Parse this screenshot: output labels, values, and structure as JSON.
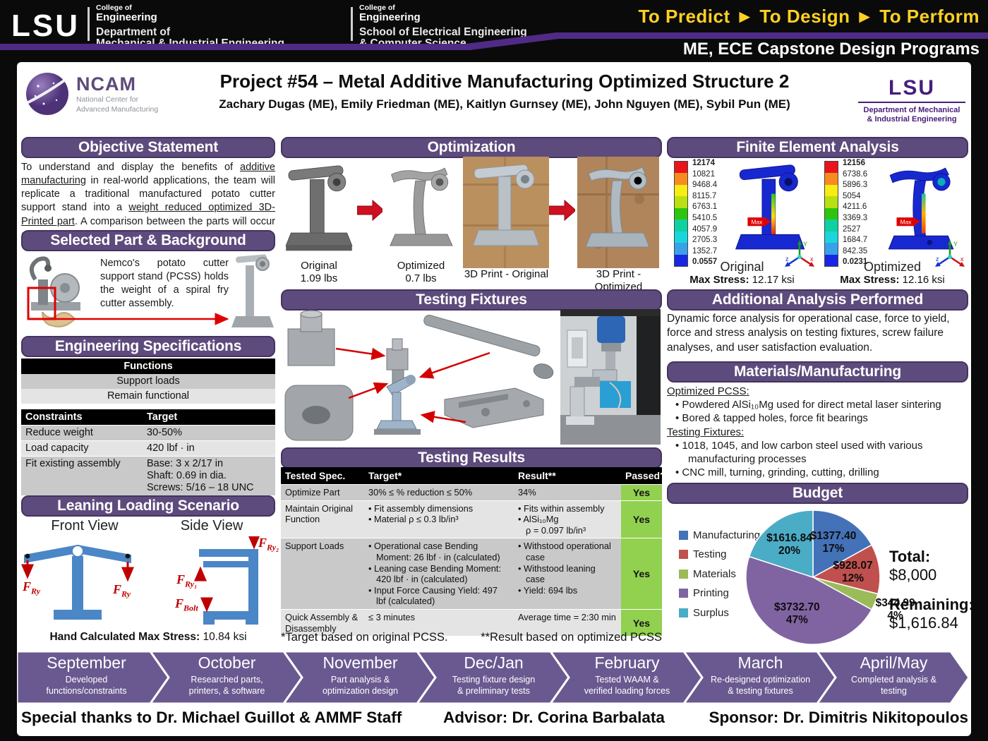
{
  "banner": {
    "lsu_wordmark": "LSU",
    "unit1": {
      "c1": "College of",
      "c2": "Engineering",
      "l1": "Department of",
      "l2": "Mechanical & Industrial Engineering"
    },
    "unit2": {
      "c1": "College of",
      "c2": "Engineering",
      "l1": "School of Electrical Engineering",
      "l2": "& Computer Science"
    },
    "tagline": "To Predict ► To Design ► To Perform",
    "program": "ME, ECE Capstone Design Programs"
  },
  "title_block": {
    "ncam": {
      "name": "NCAM",
      "sub1": "National Center for",
      "sub2": "Advanced Manufacturing"
    },
    "title": "Project #54 – Metal Additive Manufacturing Optimized Structure 2",
    "authors": "Zachary Dugas (ME), Emily Friedman (ME), Kaitlyn Gurnsey (ME), John Nguyen (ME), Sybil Pun (ME)",
    "lsu_dept": {
      "wordmark": "LSU",
      "line1": "Department of Mechanical",
      "line2": "& Industrial Engineering"
    }
  },
  "objective": {
    "header": "Objective Statement",
    "segments": [
      {
        "t": "To understand and display the benefits of ",
        "u": false
      },
      {
        "t": "additive manufacturing",
        "u": true
      },
      {
        "t": " in real-world applications, the team will replicate a traditional manufactured potato cutter support stand into a ",
        "u": false
      },
      {
        "t": "weight reduced optimized 3D-Printed part",
        "u": true
      },
      {
        "t": ". A comparison between the parts will occur after testing.",
        "u": false
      }
    ]
  },
  "selected_part": {
    "header": "Selected Part & Background",
    "text": "Nemco's potato cutter support stand (PCSS) holds the weight of a spiral fry cutter assembly."
  },
  "engineering_specs": {
    "header": "Engineering Specifications",
    "functions_header": "Functions",
    "functions": [
      "Support loads",
      "Remain functional"
    ],
    "constraints_headers": [
      "Constraints",
      "Target"
    ],
    "constraints": [
      {
        "name": "Reduce weight",
        "target": [
          "30-50%"
        ]
      },
      {
        "name": "Load capacity",
        "target": [
          "420 lbf · in"
        ]
      },
      {
        "name": "Fit existing assembly",
        "target": [
          "Base: 3 x 2/17 in",
          "Shaft: 0.69 in dia.",
          "Screws: 5/16 – 18 UNC"
        ]
      }
    ]
  },
  "leaning": {
    "header": "Leaning Loading Scenario",
    "front_label": "Front View",
    "side_label": "Side View",
    "front_forces": [
      {
        "m": "F",
        "s": "Ry"
      },
      {
        "m": "F",
        "s": "Ry"
      }
    ],
    "side_forces": [
      {
        "m": "F",
        "s": "Ry₂"
      },
      {
        "m": "F",
        "s": "Ry₁"
      },
      {
        "m": "F",
        "s": "Bolt"
      }
    ],
    "hand_calc_label": "Hand Calculated Max Stress:",
    "hand_calc_value": "10.84  ksi"
  },
  "optimization": {
    "header": "Optimization",
    "items": [
      {
        "label1": "Original",
        "label2": "1.09 lbs"
      },
      {
        "label1": "Optimized",
        "label2": "0.7 lbs"
      },
      {
        "label1": "3D Print - Original",
        "label2": ""
      },
      {
        "label1": "3D Print - Optimized",
        "label2": ""
      }
    ]
  },
  "testing_fixtures": {
    "header": "Testing Fixtures"
  },
  "testing_results": {
    "header": "Testing Results",
    "columns": [
      "Tested Spec.",
      "Target*",
      "Result**",
      "Passed?"
    ],
    "rows": [
      {
        "spec": "Optimize Part",
        "target": [
          "30% ≤ % reduction ≤ 50%"
        ],
        "target_bullets": false,
        "result": [
          "34%"
        ],
        "result_bullets": false,
        "passed": "Yes"
      },
      {
        "spec": "Maintain Original Function",
        "target": [
          "Fit assembly dimensions",
          "Material ρ ≤ 0.3 lb/in³"
        ],
        "target_bullets": true,
        "result": [
          "Fits within assembly",
          "AlSi₁₀Mg\nρ = 0.097 lb/in³"
        ],
        "result_bullets": true,
        "passed": "Yes"
      },
      {
        "spec": "Support Loads",
        "target": [
          "Operational case Bending Moment: 26 lbf · in (calculated)",
          "Leaning case Bending Moment: 420 lbf · in (calculated)",
          "Input Force Causing Yield: 497 lbf (calculated)"
        ],
        "target_bullets": true,
        "result": [
          "Withstood operational case",
          "Withstood leaning case",
          "Yield: 694 lbs"
        ],
        "result_bullets": true,
        "passed": "Yes"
      },
      {
        "spec": "Quick Assembly & Disassembly",
        "target": [
          "≤ 3 minutes"
        ],
        "target_bullets": false,
        "result": [
          "Average time = 2:30 min"
        ],
        "result_bullets": false,
        "passed": "Yes"
      }
    ],
    "footnote1": "*Target based on original PCSS.",
    "footnote2": "**Result based on optimized PCSS"
  },
  "fea": {
    "header": "Finite Element Analysis",
    "max_tag": "Max",
    "plots": [
      {
        "scale": [
          "12174",
          "10821",
          "9468.4",
          "8115.7",
          "6763.1",
          "5410.5",
          "4057.9",
          "2705.3",
          "1352.7",
          "0.0557"
        ],
        "caption": "Original",
        "max_label": "Max Stress:",
        "max_value": "12.17 ksi"
      },
      {
        "scale": [
          "12156",
          "6738.6",
          "5896.3",
          "5054",
          "4211.6",
          "3369.3",
          "2527",
          "1684.7",
          "842.35",
          "0.0231"
        ],
        "caption": "Optimized",
        "max_label": "Max Stress:",
        "max_value": "12.16 ksi"
      }
    ]
  },
  "additional_analysis": {
    "header": "Additional Analysis Performed",
    "text": "Dynamic force analysis for operational case, force to yield, force and stress analysis on testing fixtures, screw failure analyses, and user satisfaction evaluation."
  },
  "materials": {
    "header": "Materials/Manufacturing",
    "sections": [
      {
        "title": "Optimized PCSS:",
        "bullets": [
          "Powdered AlSi₁₀Mg used for direct metal laser sintering",
          "Bored & tapped holes, force fit bearings"
        ]
      },
      {
        "title": "Testing Fixtures:",
        "bullets": [
          "1018, 1045, and low carbon steel used with various manufacturing processes",
          "CNC mill, turning, grinding, cutting, drilling"
        ]
      }
    ]
  },
  "budget": {
    "header": "Budget"
  },
  "chart_data": {
    "type": "pie",
    "title": "Budget",
    "legend_position": "left",
    "slices": [
      {
        "label": "Manufacturing",
        "value": 1377.4,
        "pct": 17,
        "display": "$1377.40",
        "color": "#4472b8"
      },
      {
        "label": "Testing",
        "value": 928.07,
        "pct": 12,
        "display": "$928.07",
        "color": "#c0504d"
      },
      {
        "label": "Materials",
        "value": 344.99,
        "pct": 4,
        "display": "$344.99",
        "color": "#9bbb59"
      },
      {
        "label": "Printing",
        "value": 3732.7,
        "pct": 47,
        "display": "$3732.70",
        "color": "#8064a2"
      },
      {
        "label": "Surplus",
        "value": 1616.84,
        "pct": 20,
        "display": "$1616.84",
        "color": "#4bacc6"
      }
    ],
    "total_label": "Total:",
    "total_value": "$8,000",
    "remaining_label": "Remaining:",
    "remaining_value": "$1,616.84"
  },
  "timeline": [
    {
      "month": "September",
      "desc": [
        "Developed",
        "functions/constraints"
      ]
    },
    {
      "month": "October",
      "desc": [
        "Researched parts,",
        "printers, & software"
      ]
    },
    {
      "month": "November",
      "desc": [
        "Part analysis &",
        "optimization design"
      ]
    },
    {
      "month": "Dec/Jan",
      "desc": [
        "Testing fixture design",
        "& preliminary tests"
      ]
    },
    {
      "month": "February",
      "desc": [
        "Tested WAAM &",
        "verified loading forces"
      ]
    },
    {
      "month": "March",
      "desc": [
        "Re-designed optimization",
        "& testing fixtures"
      ]
    },
    {
      "month": "April/May",
      "desc": [
        "Completed analysis &",
        "testing"
      ]
    }
  ],
  "footer": {
    "thanks": "Special thanks to Dr. Michael Guillot & AMMF Staff",
    "advisor": "Advisor: Dr. Corina Barbalata",
    "sponsor": "Sponsor: Dr. Dimitris Nikitopoulos"
  }
}
